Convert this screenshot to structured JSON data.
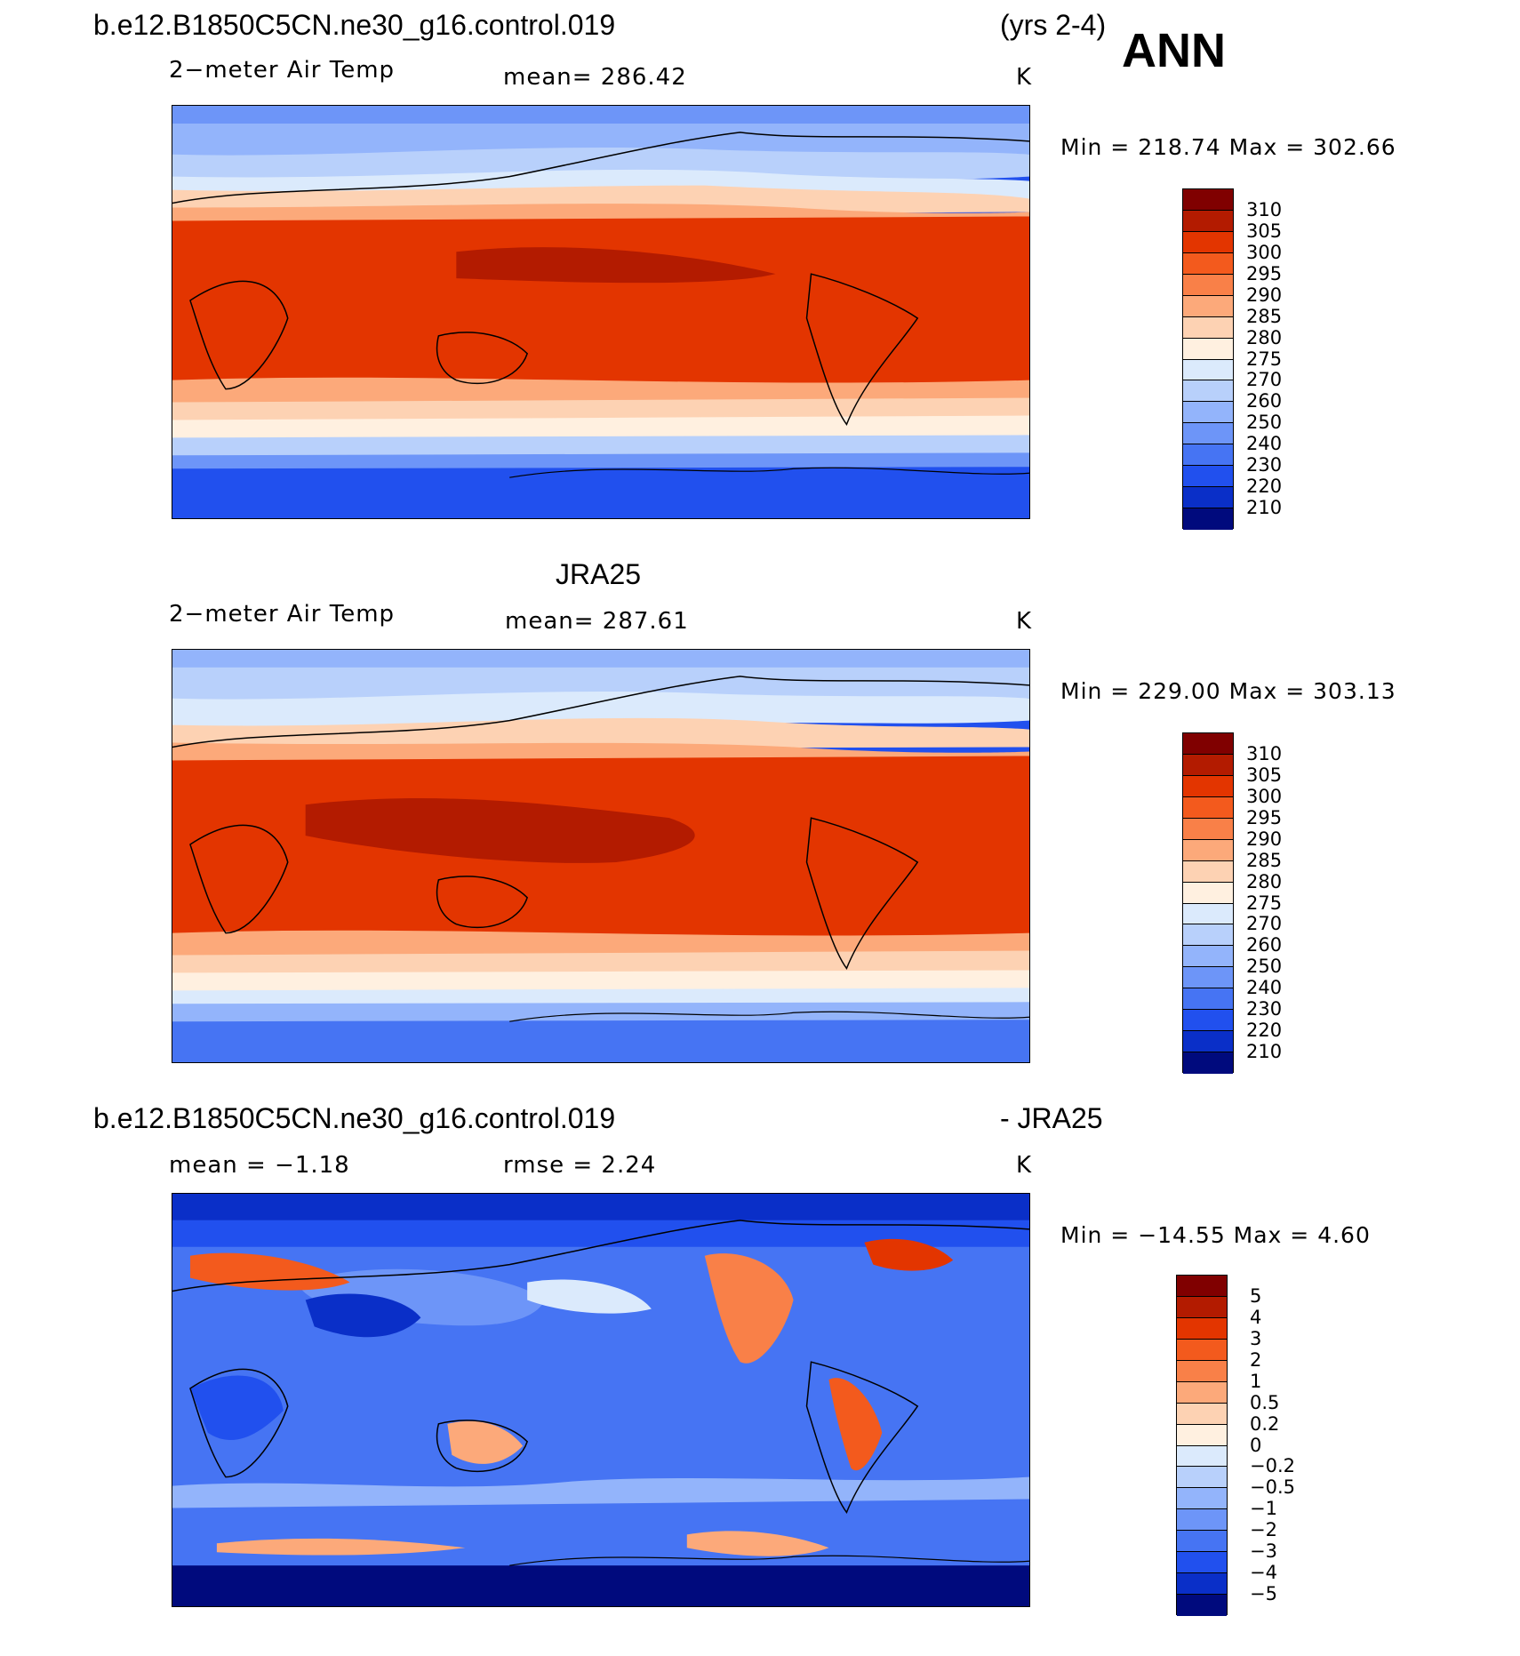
{
  "header": {
    "case_name": "b.e12.B1850C5CN.ne30_g16.control.019",
    "years": "(yrs 2-4)",
    "season": "ANN"
  },
  "panels": [
    {
      "id": "model",
      "title": "",
      "variable": "2−meter Air Temp",
      "stat_text": "mean=  286.42",
      "units": "K",
      "minmax": "Min  =  218.74  Max  =  302.66",
      "colorbar_labels": [
        "310",
        "305",
        "300",
        "295",
        "290",
        "285",
        "280",
        "275",
        "270",
        "260",
        "250",
        "240",
        "230",
        "220",
        "210"
      ],
      "colorbar_colors": [
        "#800000",
        "#b31b00",
        "#e33500",
        "#f35a1d",
        "#f98048",
        "#fca97a",
        "#fdd2b3",
        "#fff0e0",
        "#dbeafc",
        "#b8d0fb",
        "#93b4fb",
        "#6d95f8",
        "#4674f3",
        "#2150ee",
        "#0a2fc8",
        "#000a7d"
      ]
    },
    {
      "id": "obs",
      "title": "JRA25",
      "variable": "2−meter Air Temp",
      "stat_text": "mean=  287.61",
      "units": "K",
      "minmax": "Min  =  229.00  Max  =  303.13",
      "colorbar_labels": [
        "310",
        "305",
        "300",
        "295",
        "290",
        "285",
        "280",
        "275",
        "270",
        "260",
        "250",
        "240",
        "230",
        "220",
        "210"
      ],
      "colorbar_colors": [
        "#800000",
        "#b31b00",
        "#e33500",
        "#f35a1d",
        "#f98048",
        "#fca97a",
        "#fdd2b3",
        "#fff0e0",
        "#dbeafc",
        "#b8d0fb",
        "#93b4fb",
        "#6d95f8",
        "#4674f3",
        "#2150ee",
        "#0a2fc8",
        "#000a7d"
      ]
    },
    {
      "id": "diff",
      "title_left": "b.e12.B1850C5CN.ne30_g16.control.019",
      "title_right": "- JRA25",
      "stat_text": "mean =    −1.18",
      "stat_text2": "rmse =     2.24",
      "units": "K",
      "minmax": "Min  =  −14.55  Max  =     4.60",
      "colorbar_labels": [
        "5",
        "4",
        "3",
        "2",
        "1",
        "0.5",
        "0.2",
        "0",
        "−0.2",
        "−0.5",
        "−1",
        "−2",
        "−3",
        "−4",
        "−5"
      ],
      "colorbar_colors": [
        "#800000",
        "#b31b00",
        "#e33500",
        "#f35a1d",
        "#f98048",
        "#fca97a",
        "#fdd2b3",
        "#fff0e0",
        "#dbeafc",
        "#b8d0fb",
        "#93b4fb",
        "#6d95f8",
        "#4674f3",
        "#2150ee",
        "#0a2fc8",
        "#000a7d"
      ]
    }
  ]
}
